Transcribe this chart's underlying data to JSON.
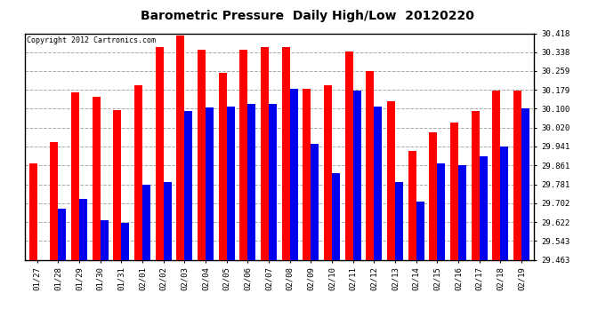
{
  "title": "Barometric Pressure  Daily High/Low  20120220",
  "copyright": "Copyright 2012 Cartronics.com",
  "dates": [
    "01/27",
    "01/28",
    "01/29",
    "01/30",
    "01/31",
    "02/01",
    "02/02",
    "02/03",
    "02/04",
    "02/05",
    "02/06",
    "02/07",
    "02/08",
    "02/09",
    "02/10",
    "02/11",
    "02/12",
    "02/13",
    "02/14",
    "02/15",
    "02/16",
    "02/17",
    "02/18",
    "02/19"
  ],
  "high": [
    29.87,
    29.96,
    30.17,
    30.15,
    30.095,
    30.2,
    30.36,
    30.408,
    30.35,
    30.25,
    30.35,
    30.36,
    30.36,
    30.185,
    30.2,
    30.34,
    30.26,
    30.13,
    29.92,
    30.0,
    30.04,
    30.09,
    30.175,
    30.175
  ],
  "low": [
    29.463,
    29.68,
    29.72,
    29.63,
    29.62,
    29.78,
    29.79,
    30.09,
    30.105,
    30.11,
    30.12,
    30.12,
    30.185,
    29.95,
    29.83,
    30.175,
    30.11,
    29.79,
    29.71,
    29.87,
    29.86,
    29.9,
    29.94,
    30.1
  ],
  "ylim_min": 29.463,
  "ylim_max": 30.418,
  "yticks": [
    29.463,
    29.543,
    29.622,
    29.702,
    29.781,
    29.861,
    29.941,
    30.02,
    30.1,
    30.179,
    30.259,
    30.338,
    30.418
  ],
  "bar_width": 0.38,
  "high_color": "#ff0000",
  "low_color": "#0000ee",
  "bg_color": "#ffffff",
  "grid_color": "#aaaaaa",
  "title_fontsize": 10,
  "tick_fontsize": 6.5,
  "copyright_fontsize": 6
}
